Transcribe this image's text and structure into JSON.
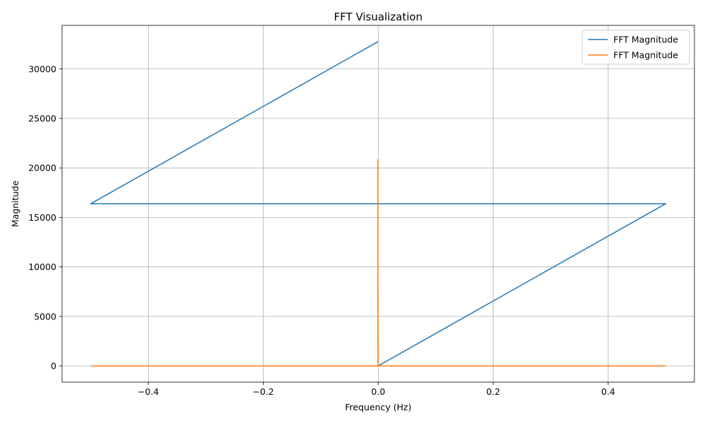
{
  "chart_data": {
    "type": "line",
    "title": "FFT Visualization",
    "xlabel": "Frequency (Hz)",
    "ylabel": "Magnitude",
    "xlim": [
      -0.55,
      0.55
    ],
    "ylim": [
      -1640,
      34400
    ],
    "xticks": [
      -0.4,
      -0.2,
      0.0,
      0.2,
      0.4
    ],
    "xtick_labels": [
      "−0.4",
      "−0.2",
      "0.0",
      "0.2",
      "0.4"
    ],
    "yticks": [
      0,
      5000,
      10000,
      15000,
      20000,
      25000,
      30000
    ],
    "ytick_labels": [
      "0",
      "5000",
      "10000",
      "15000",
      "20000",
      "25000",
      "30000"
    ],
    "grid": true,
    "legend_position": "top-right",
    "series": [
      {
        "name": "FFT Magnitude",
        "color": "#1f77b4",
        "points": [
          [
            0.0,
            0
          ],
          [
            0.5,
            16384
          ],
          [
            -0.5,
            16384
          ],
          [
            0.0,
            32768
          ]
        ]
      },
      {
        "name": "FFT Magnitude",
        "color": "#ff7f0e",
        "points": [
          [
            -0.5,
            0
          ],
          [
            -0.0005,
            0
          ],
          [
            -0.0005,
            20850
          ],
          [
            -0.0003,
            0
          ],
          [
            -0.0003,
            7100
          ],
          [
            0.0,
            0
          ],
          [
            0.5,
            0
          ]
        ]
      }
    ]
  }
}
